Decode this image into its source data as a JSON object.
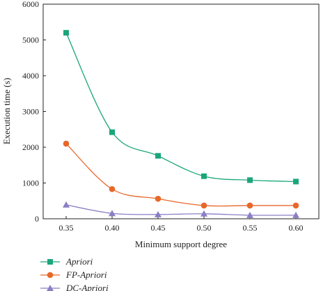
{
  "chart_data": {
    "type": "line",
    "xlabel": "Minimum support degree",
    "ylabel": "Execution time (s)",
    "xlim": [
      0.325,
      0.625
    ],
    "ylim": [
      0,
      6000
    ],
    "x_ticks": [
      "0.35",
      "0.40",
      "0.45",
      "0.50",
      "0.55",
      "0.60"
    ],
    "y_ticks": [
      "0",
      "1000",
      "2000",
      "3000",
      "4000",
      "5000",
      "6000"
    ],
    "x_tick_values": [
      0.35,
      0.4,
      0.45,
      0.5,
      0.55,
      0.6
    ],
    "y_tick_values": [
      0,
      1000,
      2000,
      3000,
      4000,
      5000,
      6000
    ],
    "x": [
      0.35,
      0.4,
      0.45,
      0.5,
      0.55,
      0.6
    ],
    "legend_position": "bottom-left, below plot",
    "grid": false,
    "series": [
      {
        "name": "Apriori",
        "marker": "square",
        "color": "#1aa67a",
        "values": [
          5200,
          2420,
          1760,
          1190,
          1080,
          1040
        ]
      },
      {
        "name": "FP-Apriori",
        "marker": "circle",
        "color": "#e8672a",
        "values": [
          2100,
          830,
          560,
          370,
          370,
          370
        ]
      },
      {
        "name": "DC-Apriori",
        "marker": "triangle",
        "color": "#8a7fc4",
        "values": [
          390,
          150,
          120,
          140,
          100,
          100
        ]
      }
    ]
  }
}
